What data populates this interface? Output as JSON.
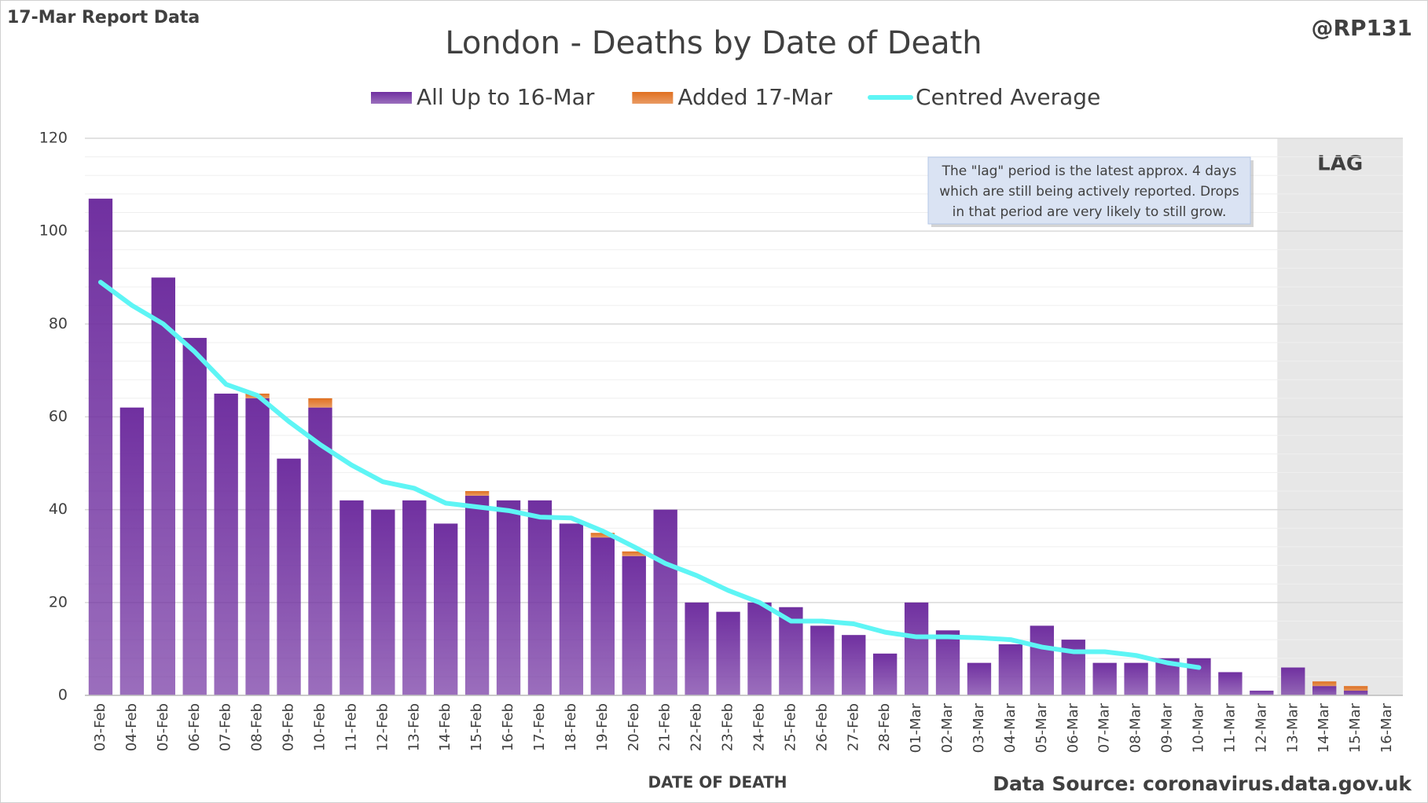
{
  "header": {
    "report": "17-Mar Report Data",
    "handle": "@RP131"
  },
  "chart_data": {
    "type": "bar",
    "stacked": true,
    "title": "London - Deaths by Date of Death",
    "xlabel": "DATE OF DEATH",
    "source": "Data Source: coronavirus.data.gov.uk",
    "annotation": [
      "The \"lag\" period is the latest approx. 4 days",
      "which are still being actively reported.  Drops",
      "in that period are very likely to still grow."
    ],
    "lag_label": "LAG",
    "lag_start": "13-Mar",
    "categories": [
      "03-Feb",
      "04-Feb",
      "05-Feb",
      "06-Feb",
      "07-Feb",
      "08-Feb",
      "09-Feb",
      "10-Feb",
      "11-Feb",
      "12-Feb",
      "13-Feb",
      "14-Feb",
      "15-Feb",
      "16-Feb",
      "17-Feb",
      "18-Feb",
      "19-Feb",
      "20-Feb",
      "21-Feb",
      "22-Feb",
      "23-Feb",
      "24-Feb",
      "25-Feb",
      "26-Feb",
      "27-Feb",
      "28-Feb",
      "01-Mar",
      "02-Mar",
      "03-Mar",
      "04-Mar",
      "05-Mar",
      "06-Mar",
      "07-Mar",
      "08-Mar",
      "09-Mar",
      "10-Mar",
      "11-Mar",
      "12-Mar",
      "13-Mar",
      "14-Mar",
      "15-Mar",
      "16-Mar"
    ],
    "series": [
      {
        "name": "All Up to 16-Mar",
        "color": "#7030a0",
        "values": [
          107,
          62,
          90,
          77,
          65,
          64,
          51,
          62,
          42,
          40,
          42,
          37,
          43,
          42,
          42,
          37,
          34,
          30,
          40,
          20,
          18,
          20,
          19,
          15,
          13,
          9,
          20,
          14,
          7,
          11,
          15,
          12,
          7,
          7,
          8,
          8,
          5,
          1,
          6,
          2,
          1,
          0
        ]
      },
      {
        "name": "Added 17-Mar",
        "color": "#e07020",
        "values": [
          0,
          0,
          0,
          0,
          0,
          1,
          0,
          2,
          0,
          0,
          0,
          0,
          1,
          0,
          0,
          0,
          1,
          1,
          0,
          0,
          0,
          0,
          0,
          0,
          0,
          0,
          0,
          0,
          0,
          0,
          0,
          0,
          0,
          0,
          0,
          0,
          0,
          0,
          0,
          1,
          1,
          0
        ]
      },
      {
        "name": "Centred Average",
        "type": "line",
        "color": "#5ef5f5",
        "values": [
          89,
          84,
          80,
          74,
          67,
          64.6,
          59,
          54,
          49.6,
          46,
          44.6,
          41.4,
          40.6,
          39.8,
          38.4,
          38.2,
          35.4,
          32,
          28.4,
          25.8,
          22.6,
          20,
          16,
          16,
          15.4,
          13.6,
          12.6,
          12.6,
          12.4,
          12,
          10.4,
          9.4,
          9.4,
          8.6,
          7,
          6,
          null,
          null,
          null,
          null,
          null,
          null
        ]
      }
    ],
    "ylim": [
      0,
      120
    ],
    "yticks": [
      0,
      20,
      40,
      60,
      80,
      100,
      120
    ],
    "grid": true,
    "legend": "top"
  }
}
